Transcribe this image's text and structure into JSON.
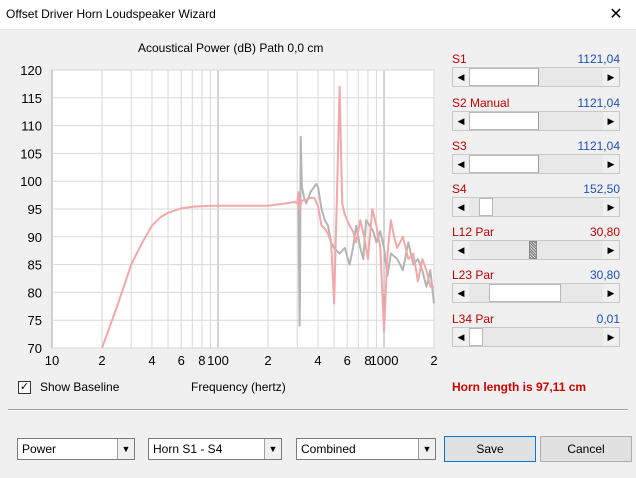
{
  "window": {
    "title": "Offset Driver Horn Loudspeaker Wizard",
    "close_glyph": "✕"
  },
  "chart_title": "Acoustical Power (dB)   Path 0,0 cm",
  "chart_data": {
    "type": "line",
    "title": "Acoustical Power (dB)   Path 0,0 cm",
    "xlabel": "Frequency (hertz)",
    "ylabel": "",
    "x_scale": "log",
    "xlim": [
      10,
      2000
    ],
    "ylim": [
      70,
      120
    ],
    "grid": true,
    "y_ticks": [
      70,
      75,
      80,
      85,
      90,
      95,
      100,
      105,
      110,
      115,
      120
    ],
    "x_tick_labels": [
      {
        "x": 10,
        "label": "10"
      },
      {
        "x": 20,
        "label": "2"
      },
      {
        "x": 40,
        "label": "4"
      },
      {
        "x": 60,
        "label": "6"
      },
      {
        "x": 80,
        "label": "8"
      },
      {
        "x": 100,
        "label": "100"
      },
      {
        "x": 200,
        "label": "2"
      },
      {
        "x": 400,
        "label": "4"
      },
      {
        "x": 600,
        "label": "6"
      },
      {
        "x": 800,
        "label": "8"
      },
      {
        "x": 1000,
        "label": "1000"
      },
      {
        "x": 2000,
        "label": "2"
      }
    ],
    "series": [
      {
        "color": "#b4b4b4",
        "x": [
          300,
          305,
          310,
          312,
          315,
          320,
          330,
          340,
          350,
          360,
          370,
          380,
          390,
          400,
          420,
          440,
          460,
          480,
          500,
          540,
          580,
          620,
          650,
          680,
          700,
          720,
          750,
          780,
          820,
          860,
          900,
          950,
          1000,
          1050,
          1100,
          1200,
          1300,
          1400,
          1500,
          1600,
          1700,
          1800,
          1900,
          2000
        ],
        "y": [
          96,
          97,
          74,
          80,
          108,
          99,
          97,
          96,
          97,
          98,
          98.5,
          99,
          99.5,
          99,
          95,
          93,
          92,
          89,
          88,
          87,
          88,
          85,
          88,
          92,
          90,
          88,
          86,
          93,
          92,
          91,
          89,
          91,
          88,
          83,
          87,
          86,
          84,
          89,
          85,
          86,
          84,
          81,
          84,
          78
        ]
      },
      {
        "color": "#f2a8a8",
        "x": [
          20,
          25,
          30,
          35,
          40,
          45,
          50,
          60,
          70,
          80,
          90,
          100,
          130,
          160,
          200,
          240,
          270,
          290,
          300,
          305,
          310,
          320,
          340,
          360,
          380,
          400,
          420,
          440,
          460,
          480,
          500,
          520,
          540,
          560,
          580,
          600,
          620,
          650,
          680,
          720,
          760,
          800,
          850,
          900,
          950,
          1000,
          1050,
          1100,
          1150,
          1200,
          1300,
          1400,
          1500,
          1600,
          1700,
          1800,
          1900,
          2000
        ],
        "y": [
          70,
          78,
          85,
          89,
          92,
          93.5,
          94.3,
          95.1,
          95.4,
          95.5,
          95.6,
          95.6,
          95.6,
          95.6,
          95.6,
          95.9,
          96.1,
          96.3,
          96,
          98,
          95,
          96.5,
          96.7,
          97,
          97,
          95.5,
          92,
          91.5,
          90.5,
          89,
          78,
          97,
          117,
          96,
          94,
          93,
          92,
          91,
          89,
          93,
          90,
          86,
          95,
          92,
          88,
          73,
          87,
          93,
          90,
          88,
          90,
          86,
          87,
          82,
          86,
          84,
          81,
          81
        ]
      }
    ]
  },
  "axis_label": "Frequency (hertz)",
  "baseline": {
    "label": "Show Baseline",
    "checked": true,
    "check_glyph": "✓"
  },
  "horn_length": "Horn length is 97,11 cm",
  "params": [
    {
      "label": "S1",
      "value": "1121,04",
      "value_color": "blue",
      "position": 0.52
    },
    {
      "label": "S2  Manual",
      "value": "1121,04",
      "value_color": "blue",
      "position": 0.52
    },
    {
      "label": "S3",
      "value": "1121,04",
      "value_color": "blue",
      "position": 0.52
    },
    {
      "label": "S4",
      "value": "152,50",
      "value_color": "blue",
      "position": 0.08
    },
    {
      "label": "L12  Par",
      "value": "30,80",
      "value_color": "red",
      "position": 0.48
    },
    {
      "label": "L23  Par",
      "value": "30,80",
      "value_color": "blue",
      "position": 0.32
    },
    {
      "label": "L34  Par",
      "value": "0,01",
      "value_color": "blue",
      "position": 0.0
    }
  ],
  "combos": [
    {
      "value": "Power"
    },
    {
      "value": "Horn S1 - S4"
    },
    {
      "value": "Combined"
    }
  ],
  "buttons": {
    "save": "Save",
    "cancel": "Cancel"
  },
  "icons": {
    "left_arrow": "◀",
    "right_arrow": "▶",
    "dropdown": "▼"
  }
}
